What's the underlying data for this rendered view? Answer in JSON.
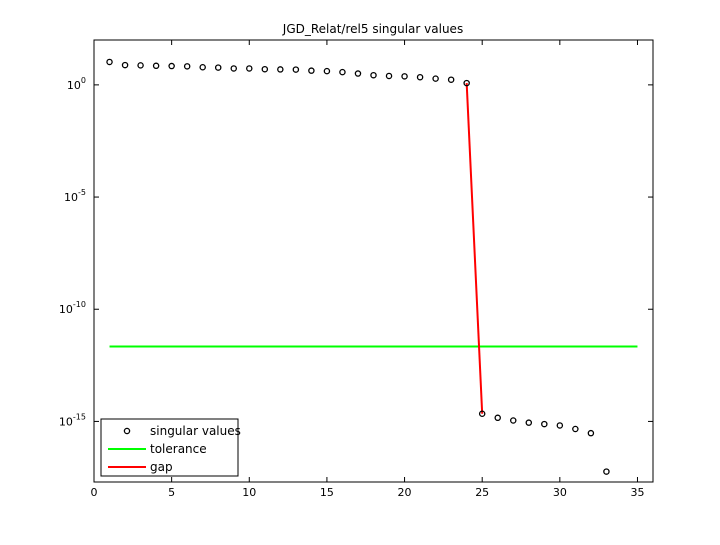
{
  "chart_data": {
    "type": "scatter",
    "title": "JGD_Relat/rel5 singular values",
    "xlabel": "",
    "ylabel": "",
    "xlim": [
      0,
      36
    ],
    "ylim_log10": [
      -17.7,
      2
    ],
    "yscale": "log",
    "grid": false,
    "legend_position": "bottom-left",
    "x_ticks": [
      0,
      5,
      10,
      15,
      20,
      25,
      30,
      35
    ],
    "y_ticks": [
      {
        "base": "10",
        "exponent": "0",
        "log10": 0
      },
      {
        "base": "10",
        "exponent": "-5",
        "log10": -5
      },
      {
        "base": "10",
        "exponent": "-10",
        "log10": -10
      },
      {
        "base": "10",
        "exponent": "-15",
        "log10": -15
      }
    ],
    "series": [
      {
        "name": "singular values",
        "kind": "markers",
        "color": "#000000",
        "x": [
          1,
          2,
          3,
          4,
          5,
          6,
          7,
          8,
          9,
          10,
          11,
          12,
          13,
          14,
          15,
          16,
          17,
          18,
          19,
          20,
          21,
          22,
          23,
          24,
          25,
          26,
          27,
          28,
          29,
          30,
          31,
          32,
          33
        ],
        "y": [
          10.5,
          7.6,
          7.4,
          7.1,
          6.9,
          6.7,
          6.1,
          5.9,
          5.4,
          5.4,
          5.0,
          4.9,
          4.8,
          4.3,
          4.1,
          3.7,
          3.2,
          2.7,
          2.5,
          2.4,
          2.2,
          1.9,
          1.7,
          1.2,
          2.2e-15,
          1.45e-15,
          1.1e-15,
          8.8e-16,
          7.6e-16,
          6.6e-16,
          4.6e-16,
          3e-16,
          5.8e-18
        ]
      },
      {
        "name": "tolerance",
        "kind": "line",
        "color": "#00ff00",
        "x": [
          1,
          35
        ],
        "y": [
          2.19e-12,
          2.19e-12
        ]
      },
      {
        "name": "gap",
        "kind": "line",
        "color": "#ff0000",
        "x": [
          24,
          25
        ],
        "y": [
          1.2,
          2.2e-15
        ]
      }
    ]
  }
}
